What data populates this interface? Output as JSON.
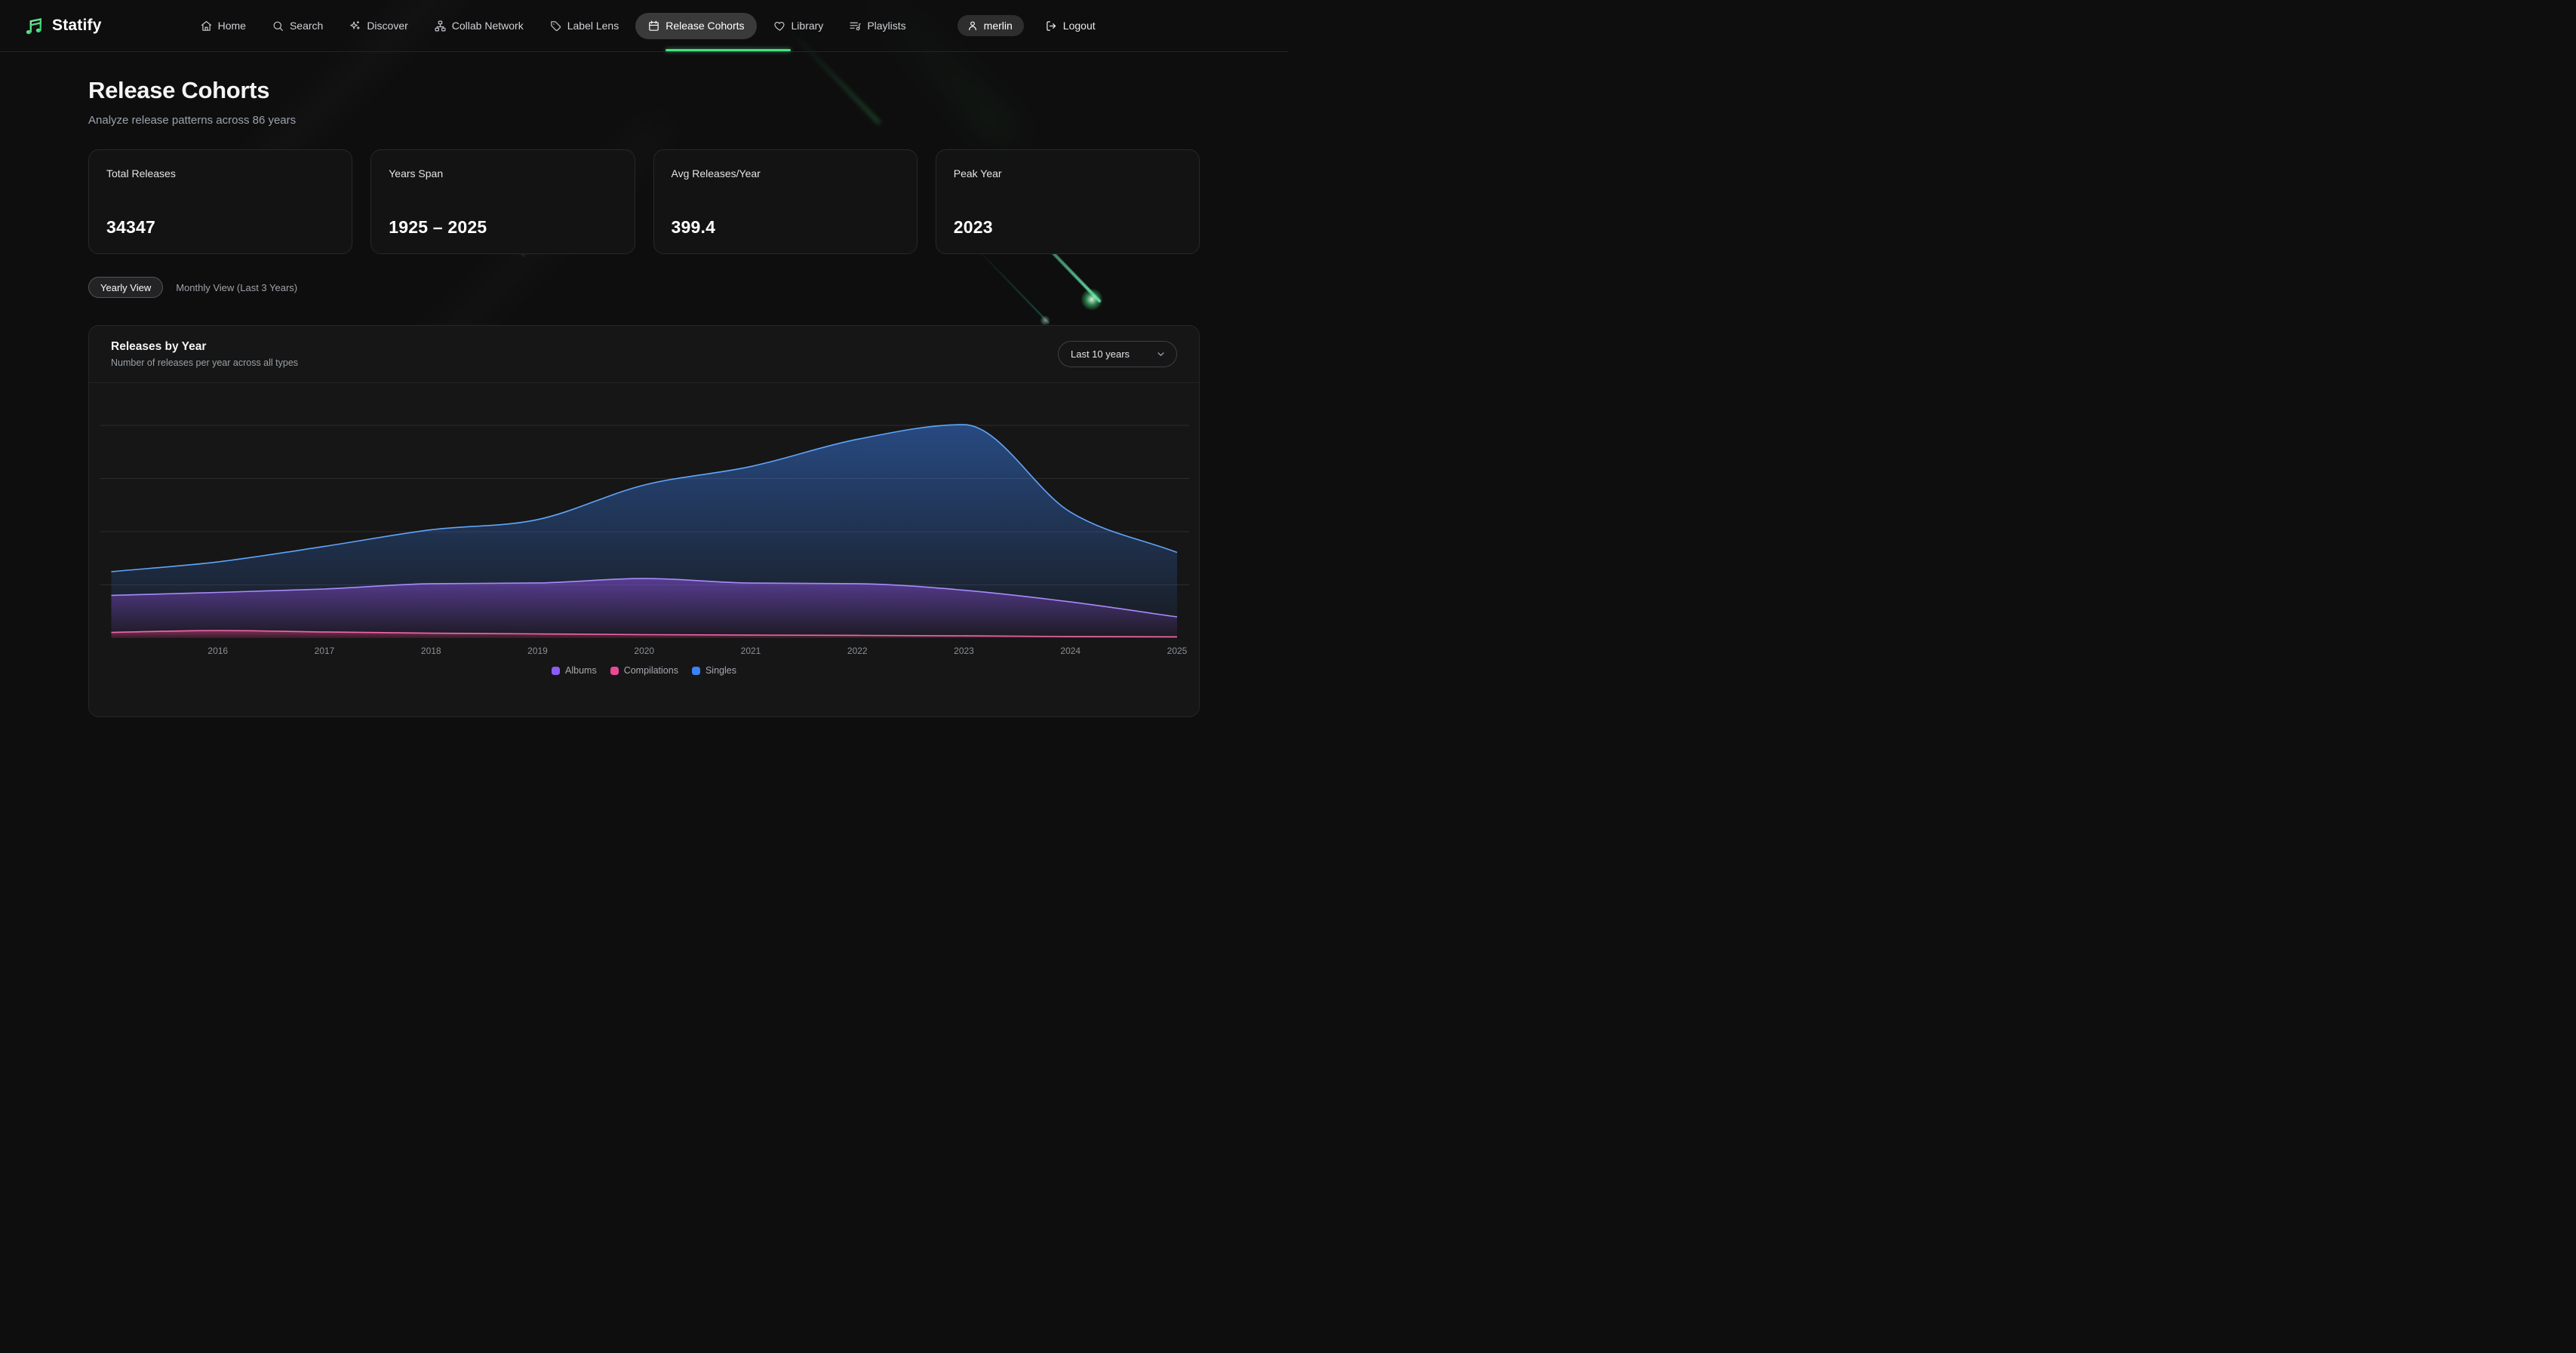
{
  "app": {
    "name": "Statify"
  },
  "nav": {
    "items": [
      {
        "label": "Home",
        "icon": "home-icon",
        "active": false
      },
      {
        "label": "Search",
        "icon": "search-icon",
        "active": false
      },
      {
        "label": "Discover",
        "icon": "sparkles-icon",
        "active": false
      },
      {
        "label": "Collab Network",
        "icon": "network-icon",
        "active": false
      },
      {
        "label": "Label Lens",
        "icon": "tag-icon",
        "active": false
      },
      {
        "label": "Release Cohorts",
        "icon": "calendar-icon",
        "active": true
      },
      {
        "label": "Library",
        "icon": "heart-icon",
        "active": false
      },
      {
        "label": "Playlists",
        "icon": "playlist-icon",
        "active": false
      }
    ],
    "user": "merlin",
    "logout_label": "Logout"
  },
  "page": {
    "title": "Release Cohorts",
    "subtitle": "Analyze release patterns across 86 years"
  },
  "stats": [
    {
      "label": "Total Releases",
      "value": "34347"
    },
    {
      "label": "Years Span",
      "value": "1925 – 2025"
    },
    {
      "label": "Avg Releases/Year",
      "value": "399.4"
    },
    {
      "label": "Peak Year",
      "value": "2023"
    }
  ],
  "view_toggle": {
    "options": [
      {
        "label": "Yearly View",
        "active": true
      },
      {
        "label": "Monthly View (Last 3 Years)",
        "active": false
      }
    ]
  },
  "chart_card": {
    "title": "Releases by Year",
    "subtitle": "Number of releases per year across all types",
    "range_selector": "Last 10 years"
  },
  "chart_data": {
    "type": "area",
    "stacked": true,
    "title": "Releases by Year",
    "x": [
      2015,
      2016,
      2017,
      2018,
      2019,
      2020,
      2021,
      2022,
      2023,
      2024,
      2025
    ],
    "x_tick_labels": [
      "2016",
      "2017",
      "2018",
      "2019",
      "2020",
      "2021",
      "2022",
      "2023",
      "2024",
      "2025"
    ],
    "y_axis_labels": false,
    "ylim": [
      0,
      2400
    ],
    "grid": "horizontal",
    "legend_position": "bottom",
    "legend": [
      "Albums",
      "Compilations",
      "Singles"
    ],
    "series": [
      {
        "name": "Albums",
        "color": "#8b5cf6",
        "stroke": "#a78bfa",
        "stack_index": 1,
        "values": [
          348,
          358,
          404,
          465,
          479,
          528,
          489,
          486,
          429,
          326,
          188
        ]
      },
      {
        "name": "Compilations",
        "color": "#ec4899",
        "stroke": "#f268a8",
        "stack_index": 0,
        "values": [
          53,
          71,
          57,
          46,
          39,
          32,
          28,
          25,
          21,
          14,
          11
        ]
      },
      {
        "name": "Singles",
        "color": "#3b82f6",
        "stroke": "#60a5fa",
        "stack_index": 2,
        "values": [
          223,
          287,
          401,
          507,
          596,
          879,
          1096,
          1358,
          1557,
          844,
          606
        ]
      }
    ]
  }
}
